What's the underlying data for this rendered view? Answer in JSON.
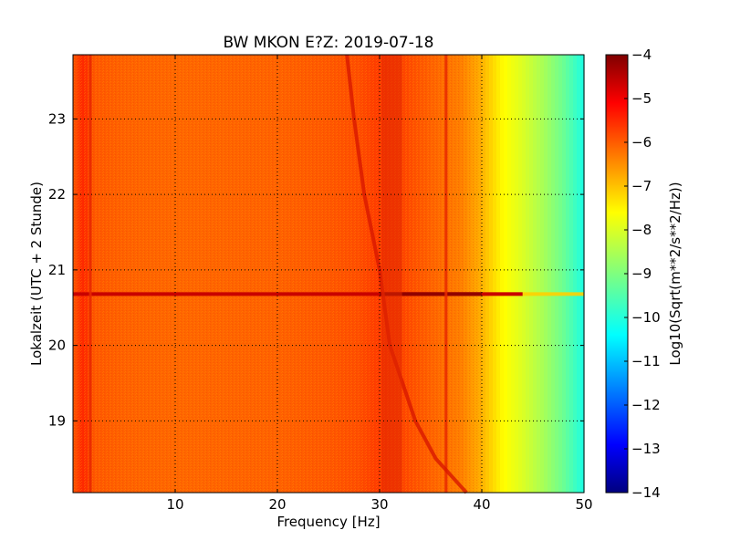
{
  "chart_data": {
    "type": "heatmap",
    "title": "BW MKON E?Z: 2019-07-18",
    "xlabel": "Frequency [Hz]",
    "ylabel": "Lokalzeit (UTC + 2 Stunde)",
    "xlim": [
      0,
      50
    ],
    "ylim": [
      23.85,
      18.05
    ],
    "x_ticks": [
      10,
      20,
      30,
      40,
      50
    ],
    "y_ticks": [
      19,
      20,
      21,
      22,
      23
    ],
    "grid": true,
    "colorbar": {
      "label": "Log10(Sqrt(m**2/s**2/Hz))",
      "range": [
        -14,
        -4
      ],
      "ticks": [
        -4,
        -5,
        -6,
        -7,
        -8,
        -9,
        -10,
        -11,
        -12,
        -13,
        -14
      ],
      "colormap": "jet"
    },
    "spectrum_profile": {
      "frequency_hz": [
        0,
        1,
        2,
        5,
        10,
        20,
        25,
        28,
        30,
        32,
        35,
        38,
        40,
        42,
        44,
        46,
        48,
        50
      ],
      "value": [
        -6.1,
        -5.6,
        -6.1,
        -6.2,
        -6.25,
        -6.2,
        -6.1,
        -6.0,
        -5.8,
        -5.9,
        -6.2,
        -6.5,
        -7.0,
        -7.7,
        -8.1,
        -8.6,
        -9.2,
        -10.0
      ]
    },
    "features": {
      "broadband_event_hour": 20.68,
      "narrowband_line_hz": [
        1.7,
        36.5
      ],
      "drifting_band_hz_at_hour": [
        [
          18.05,
          38.5
        ],
        [
          18.5,
          35.5
        ],
        [
          19.0,
          33.5
        ],
        [
          20.0,
          31.0
        ],
        [
          21.0,
          30.0
        ],
        [
          22.0,
          28.5
        ],
        [
          23.0,
          27.5
        ],
        [
          23.85,
          26.8
        ]
      ]
    }
  }
}
